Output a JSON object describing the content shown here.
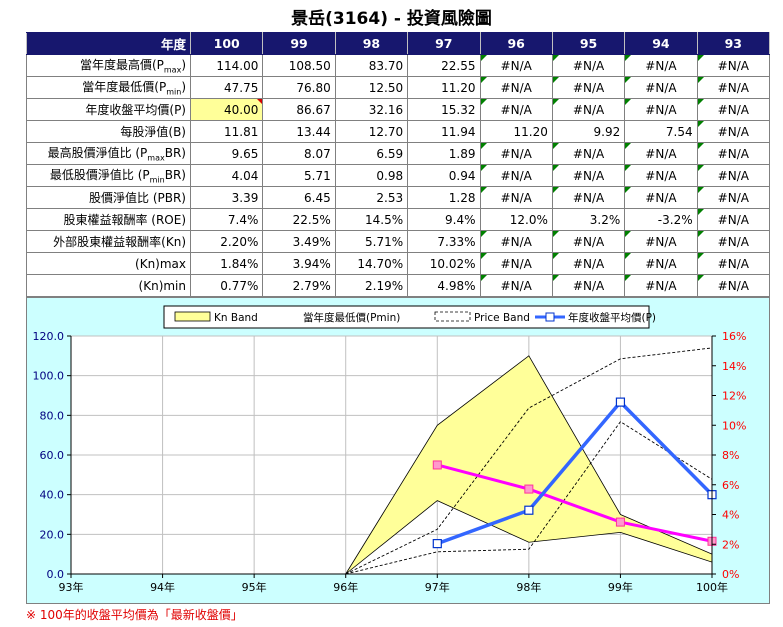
{
  "title": "景岳(3164) -  投資風險圖",
  "table": {
    "header_label": "年度",
    "years": [
      "100",
      "99",
      "98",
      "97",
      "96",
      "95",
      "94",
      "93"
    ],
    "rows": [
      {
        "label": "當年度最高價(P",
        "sub": "max",
        "tail": ")",
        "values": [
          "114.00",
          "108.50",
          "83.70",
          "22.55",
          "#N/A",
          "#N/A",
          "#N/A",
          "#N/A"
        ]
      },
      {
        "label": "當年度最低價(P",
        "sub": "min",
        "tail": ")",
        "values": [
          "47.75",
          "76.80",
          "12.50",
          "11.20",
          "#N/A",
          "#N/A",
          "#N/A",
          "#N/A"
        ]
      },
      {
        "label": "年度收盤平均價(P)",
        "values": [
          "40.00",
          "86.67",
          "32.16",
          "15.32",
          "#N/A",
          "#N/A",
          "#N/A",
          "#N/A"
        ]
      },
      {
        "label": "每股淨值(B)",
        "values": [
          "11.81",
          "13.44",
          "12.70",
          "11.94",
          "11.20",
          "9.92",
          "7.54",
          "#N/A"
        ]
      },
      {
        "label": "最高股價淨值比 (P",
        "sub": "max",
        "tail": "BR)",
        "values": [
          "9.65",
          "8.07",
          "6.59",
          "1.89",
          "#N/A",
          "#N/A",
          "#N/A",
          "#N/A"
        ]
      },
      {
        "label": "最低股價淨值比 (P",
        "sub": "min",
        "tail": "BR)",
        "values": [
          "4.04",
          "5.71",
          "0.98",
          "0.94",
          "#N/A",
          "#N/A",
          "#N/A",
          "#N/A"
        ]
      },
      {
        "label": "股價淨值比 (PBR)",
        "values": [
          "3.39",
          "6.45",
          "2.53",
          "1.28",
          "#N/A",
          "#N/A",
          "#N/A",
          "#N/A"
        ]
      },
      {
        "label": "股東權益報酬率 (ROE)",
        "values": [
          "7.4%",
          "22.5%",
          "14.5%",
          "9.4%",
          "12.0%",
          "3.2%",
          "-3.2%",
          "#N/A"
        ]
      },
      {
        "label": "外部股東權益報酬率(Kn)",
        "values": [
          "2.20%",
          "3.49%",
          "5.71%",
          "7.33%",
          "#N/A",
          "#N/A",
          "#N/A",
          "#N/A"
        ]
      },
      {
        "label": "(Kn)max",
        "values": [
          "1.84%",
          "3.94%",
          "14.70%",
          "10.02%",
          "#N/A",
          "#N/A",
          "#N/A",
          "#N/A"
        ]
      },
      {
        "label": "(Kn)min",
        "values": [
          "0.77%",
          "2.79%",
          "2.19%",
          "4.98%",
          "#N/A",
          "#N/A",
          "#N/A",
          "#N/A"
        ]
      }
    ]
  },
  "chart_data": {
    "type": "line",
    "categories": [
      "93年",
      "94年",
      "95年",
      "96年",
      "97年",
      "98年",
      "99年",
      "100年"
    ],
    "y_left_ticks": [
      "0.0",
      "20.0",
      "40.0",
      "60.0",
      "80.0",
      "100.0",
      "120.0"
    ],
    "y_right_ticks": [
      "0%",
      "2%",
      "4%",
      "6%",
      "8%",
      "10%",
      "12%",
      "14%",
      "16%"
    ],
    "ylim_left": [
      0,
      120
    ],
    "ylim_right": [
      0,
      16
    ],
    "legend": [
      "Kn Band",
      "當年度最低價(Pmin)",
      "Price Band",
      "年度收盤平均價(P)"
    ],
    "kn_band": {
      "name": "Kn Band",
      "upper": [
        null,
        null,
        null,
        0,
        75,
        110,
        30,
        10
      ],
      "lower": [
        null,
        null,
        null,
        0,
        37,
        16,
        21,
        6
      ]
    },
    "price_band": {
      "name": "Price Band",
      "upper": [
        null,
        null,
        null,
        0,
        22.55,
        83.7,
        108.5,
        114.0
      ],
      "lower": [
        null,
        null,
        null,
        0,
        11.2,
        12.5,
        76.8,
        47.75
      ]
    },
    "series": [
      {
        "name": "年度收盤平均價(P)",
        "axis": "left",
        "values": [
          null,
          null,
          null,
          null,
          15.32,
          32.16,
          86.67,
          40.0
        ]
      },
      {
        "name": "外部股東權益報酬率(Kn)",
        "axis": "right",
        "values": [
          null,
          null,
          null,
          null,
          7.33,
          5.71,
          3.49,
          2.2
        ]
      }
    ],
    "colors": {
      "kn_fill": "#ffff99",
      "price_line": "#0000ff",
      "kn_line": "#ff00ff",
      "left_axis": "#000080",
      "right_axis": "#ff0000"
    }
  },
  "footnote": "※ 100年的收盤平均價為「最新收盤價」"
}
